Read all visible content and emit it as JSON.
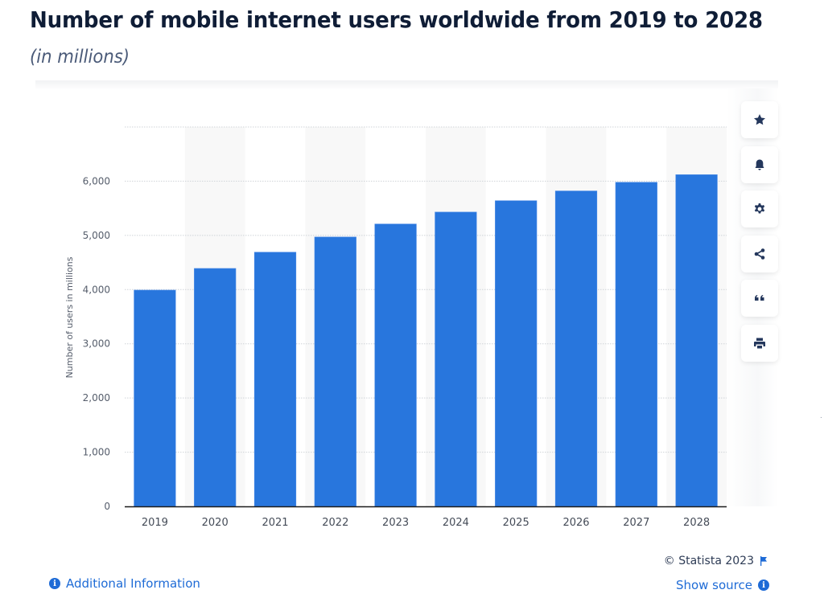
{
  "header": {
    "title": "Number of mobile internet users worldwide from 2019 to 2028",
    "subtitle": "(in millions)"
  },
  "colors": {
    "bar": "#2876dd",
    "title": "#0f1d36",
    "link": "#1e6bd6",
    "icon": "#24375c",
    "band": "#f8f8f8",
    "grid": "#cfd3d8",
    "axis": "#1a1a1a"
  },
  "sidebar": {
    "buttons": [
      {
        "name": "favorite",
        "icon": "star-icon"
      },
      {
        "name": "notification",
        "icon": "bell-icon"
      },
      {
        "name": "settings",
        "icon": "gear-icon"
      },
      {
        "name": "share",
        "icon": "share-icon"
      },
      {
        "name": "cite",
        "icon": "quote-icon"
      },
      {
        "name": "print",
        "icon": "printer-icon"
      }
    ]
  },
  "footer": {
    "additional_info": "Additional Information",
    "copyright": "© Statista 2023",
    "show_source": "Show source"
  },
  "chart_data": {
    "type": "bar",
    "title": "Number of mobile internet users worldwide from 2019 to 2028",
    "subtitle": "(in millions)",
    "xlabel": "",
    "ylabel": "Number of users in millions",
    "categories": [
      "2019",
      "2020",
      "2021",
      "2022",
      "2023",
      "2024",
      "2025",
      "2026",
      "2027",
      "2028"
    ],
    "values": [
      3990,
      4390,
      4690,
      4970,
      5210,
      5430,
      5640,
      5820,
      5980,
      6120
    ],
    "ylim": [
      0,
      7000
    ],
    "yticks": [
      0,
      1000,
      2000,
      3000,
      4000,
      5000,
      6000
    ],
    "ytick_labels": [
      "0",
      "1,000",
      "2,000",
      "3,000",
      "4,000",
      "5,000",
      "6,000"
    ],
    "grid": true,
    "legend": "none"
  }
}
